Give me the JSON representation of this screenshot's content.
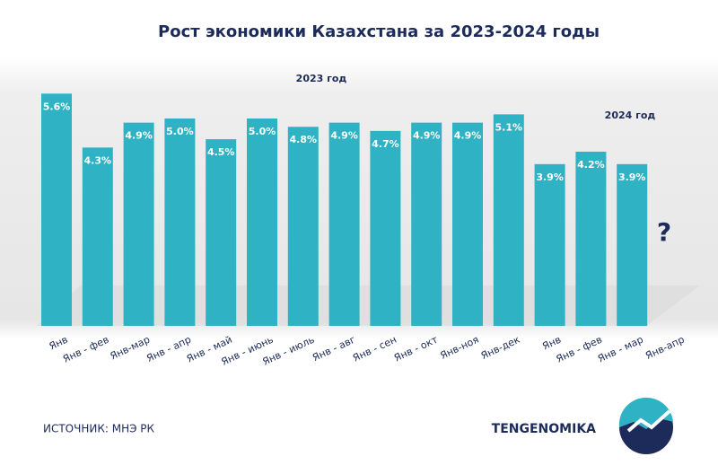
{
  "chart_data": {
    "type": "bar",
    "title": "Рост экономики Казахстана за 2023-2024 годы",
    "categories": [
      "Янв",
      "Янв - фев",
      "Янв-мар",
      "Янв - апр",
      "Янв - май",
      "Янв - июнь",
      "Янв - июль",
      "Янв - авг",
      "Янв - сен",
      "Янв - окт",
      "Янв-ноя",
      "Янв-дек",
      "Янв",
      "Янв - фев",
      "Янв - мар",
      "Янв-апр"
    ],
    "values": [
      5.6,
      4.3,
      4.9,
      5.0,
      4.5,
      5.0,
      4.8,
      4.9,
      4.7,
      4.9,
      4.9,
      5.1,
      3.9,
      4.2,
      3.9,
      null
    ],
    "value_labels": [
      "5.6%",
      "4.3%",
      "4.9%",
      "5.0%",
      "4.5%",
      "5.0%",
      "4.8%",
      "4.9%",
      "4.7%",
      "4.9%",
      "4.9%",
      "5.1%",
      "3.9%",
      "4.2%",
      "3.9%",
      null
    ],
    "color": "#2fb3c4",
    "annotations": [
      "2023 год",
      "2024 год",
      "?"
    ],
    "source": "ИСТОЧНИК: МНЭ РК",
    "brand": "TENGENOMIKA"
  }
}
